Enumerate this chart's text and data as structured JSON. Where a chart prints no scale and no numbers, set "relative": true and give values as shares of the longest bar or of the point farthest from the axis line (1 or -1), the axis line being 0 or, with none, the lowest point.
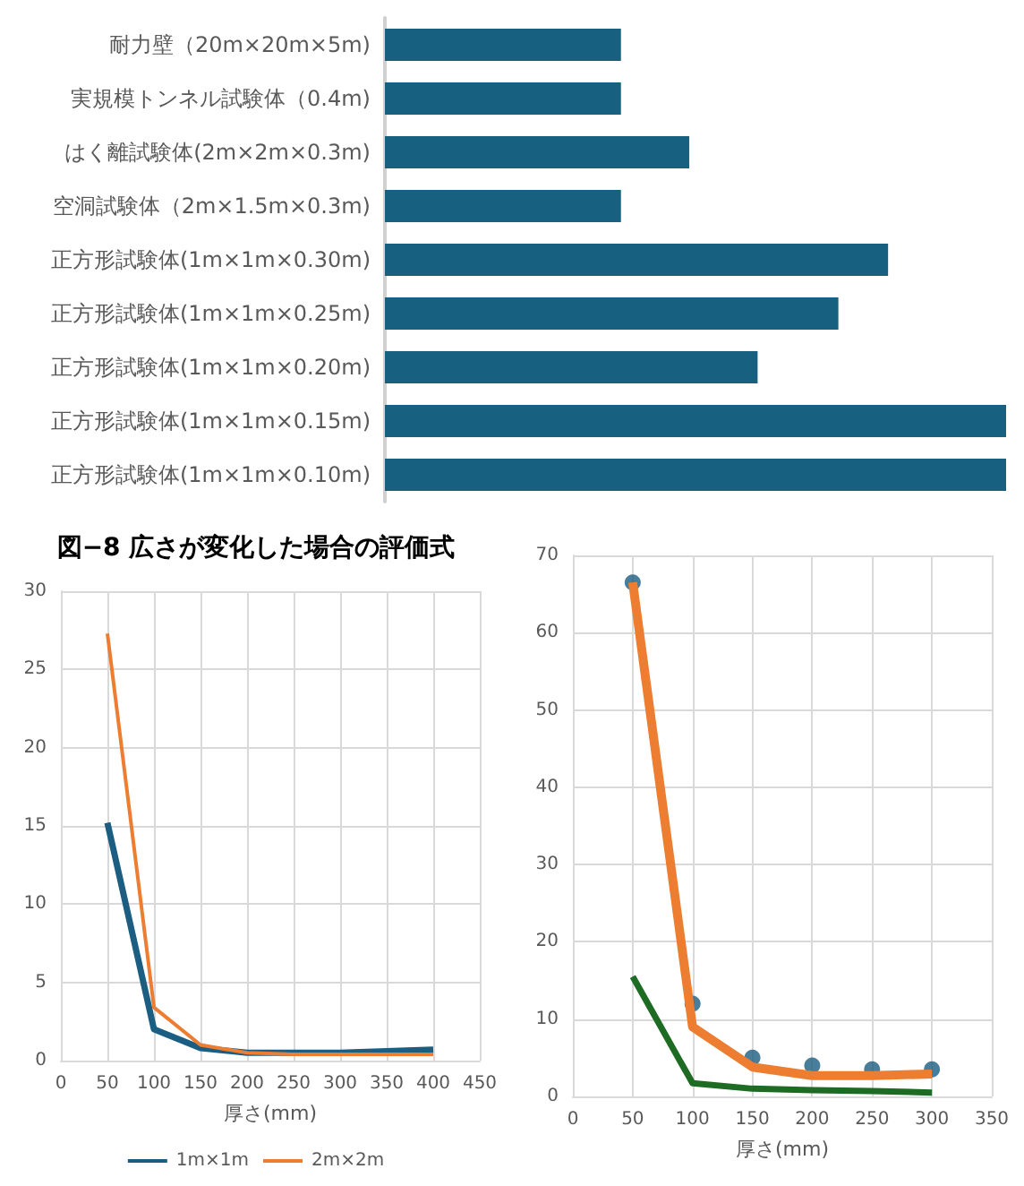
{
  "chart_data": [
    {
      "type": "bar",
      "orientation": "horizontal",
      "relative": true,
      "categories": [
        "耐力壁（20m×20m×5m)",
        "実規模トンネル試験体（0.4m)",
        "はく離試験体(2m×2m×0.3m)",
        "空洞試験体（2m×1.5m×0.3m)",
        "正方形試験体(1m×1m×0.30m)",
        "正方形試験体(1m×1m×0.25m)",
        "正方形試験体(1m×1m×0.20m)",
        "正方形試験体(1m×1m×0.15m)",
        "正方形試験体(1m×1m×0.10m)"
      ],
      "values": [
        0.38,
        0.38,
        0.49,
        0.38,
        0.81,
        0.73,
        0.6,
        1,
        1
      ],
      "color": "#17607f"
    },
    {
      "type": "line",
      "title": "図−8 広さが変化した場合の評価式",
      "xlabel": "厚さ(mm)",
      "x": [
        50,
        100,
        150,
        200,
        250,
        300,
        350,
        400
      ],
      "xlim": [
        0,
        450
      ],
      "xticks": [
        0,
        50,
        100,
        150,
        200,
        250,
        300,
        350,
        400,
        450
      ],
      "ylim": [
        0,
        30
      ],
      "yticks": [
        0,
        5,
        10,
        15,
        20,
        25,
        30
      ],
      "grid": true,
      "legend": "bottom",
      "marker": "none",
      "series": [
        {
          "name": "1m×1m",
          "color": "#1b5e82",
          "values": [
            15.2,
            2.0,
            0.8,
            0.5,
            0.5,
            0.5,
            0.6,
            0.7
          ]
        },
        {
          "name": "2m×2m",
          "color": "#ed7d31",
          "values": [
            27.3,
            3.4,
            1.0,
            0.5,
            0.4,
            0.4,
            0.4,
            0.4
          ]
        }
      ]
    },
    {
      "type": "line",
      "xlabel": "厚さ(mm)",
      "x": [
        50,
        100,
        150,
        200,
        250,
        300
      ],
      "xlim": [
        0,
        350
      ],
      "xticks": [
        0,
        50,
        100,
        150,
        200,
        250,
        300,
        350
      ],
      "ylim": [
        0,
        70
      ],
      "yticks": [
        0,
        10,
        20,
        30,
        40,
        50,
        60,
        70
      ],
      "grid": true,
      "marker": "none",
      "series": [
        {
          "color": "#ed7d31",
          "values": [
            66.5,
            9,
            3.8,
            2.7,
            2.7,
            2.9
          ]
        },
        {
          "color": "#1e6b24",
          "values": [
            15.5,
            1.7,
            1.0,
            0.8,
            0.7,
            0.5
          ]
        },
        {
          "type": "scatter",
          "marker": "circle",
          "color": "#1b5e82",
          "values": [
            66.5,
            12,
            5,
            4,
            3.5,
            3.5
          ]
        }
      ]
    }
  ]
}
